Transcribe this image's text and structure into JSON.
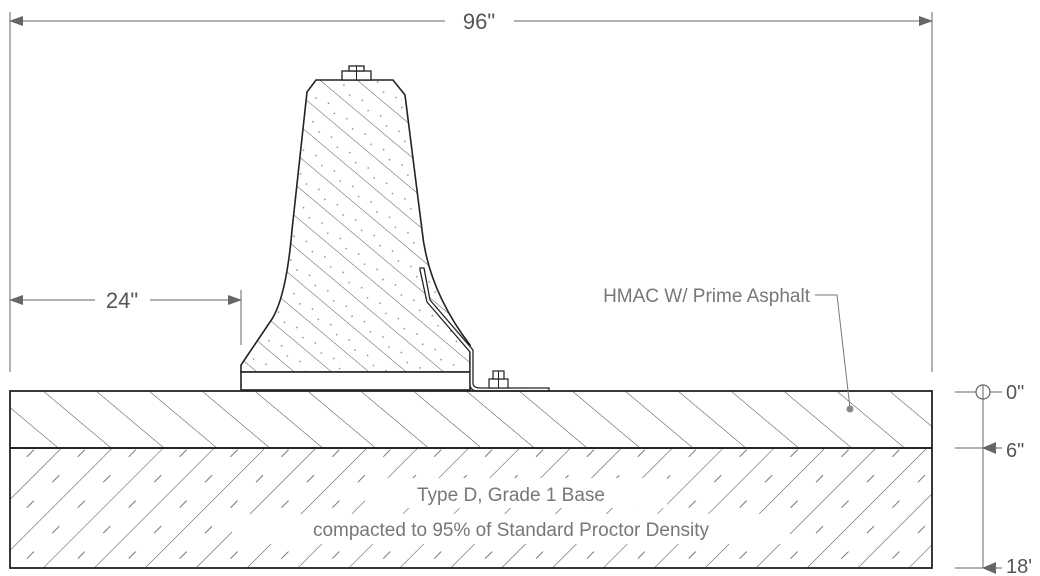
{
  "dimensions": {
    "overall_width": "96\"",
    "offset_width": "24\""
  },
  "callouts": {
    "surface_layer": "HMAC W/ Prime Asphalt",
    "base_line1": "Type D, Grade 1 Base",
    "base_line2": "compacted to 95% of Standard Proctor Density"
  },
  "elevations": {
    "top": "0\"",
    "mid": "6\"",
    "bottom": "18'"
  },
  "colors": {
    "line": "#222222",
    "dimension": "#666666",
    "label": "#777777",
    "hatch": "#333333"
  }
}
